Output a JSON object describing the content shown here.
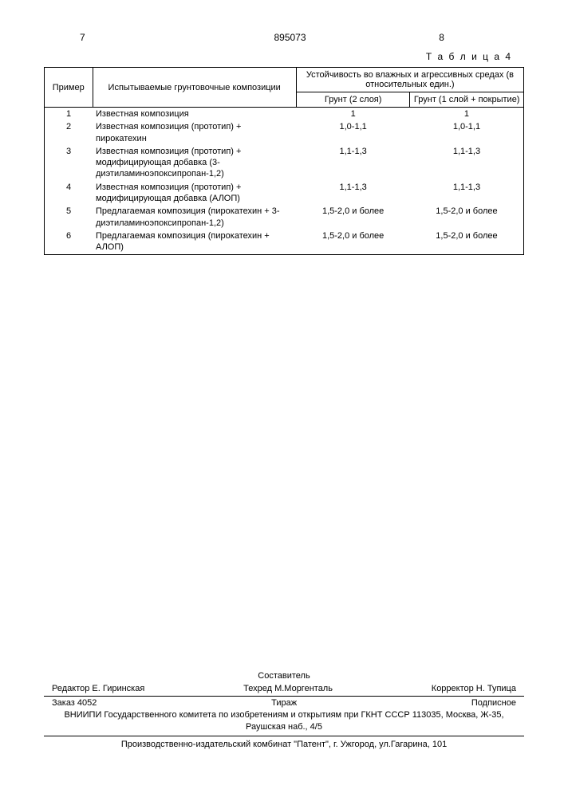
{
  "header": {
    "left_num": "7",
    "center_num": "895073",
    "right_num": "8"
  },
  "table": {
    "caption": "Т а б л и ц а  4",
    "head": {
      "col1": "Пример",
      "col2": "Испытываемые грунтовочные композиции",
      "col34_top": "Устойчивость во влажных и агрессивных средах (в относительных един.)",
      "col3": "Грунт (2 слоя)",
      "col4": "Грунт (1 слой + покрытие)"
    },
    "rows": [
      {
        "n": "1",
        "comp": "Известная композиция",
        "r1": "1",
        "r2": "1"
      },
      {
        "n": "2",
        "comp": "Известная композиция (прототип) + пирокатехин",
        "r1": "1,0-1,1",
        "r2": "1,0-1,1"
      },
      {
        "n": "3",
        "comp": "Известная композиция (прототип) + модифицирующая добавка (3-диэтиламиноэпоксипропан-1,2)",
        "r1": "1,1-1,3",
        "r2": "1,1-1,3"
      },
      {
        "n": "4",
        "comp": "Известная композиция (прототип) + модифицирующая добавка (АЛОП)",
        "r1": "1,1-1,3",
        "r2": "1,1-1,3"
      },
      {
        "n": "5",
        "comp": "Предлагаемая композиция (пирокатехин + 3-диэтиламиноэпоксипропан-1,2)",
        "r1": "1,5-2,0 и более",
        "r2": "1,5-2,0 и более"
      },
      {
        "n": "6",
        "comp": "Предлагаемая композиция (пирокатехин + АЛОП)",
        "r1": "1,5-2,0 и более",
        "r2": "1,5-2,0 и более"
      }
    ]
  },
  "footer": {
    "compiler": "Составитель",
    "editor": "Редактор Е. Гиринская",
    "techred": "Техред М.Моргенталь",
    "corrector": "Корректор Н. Тупица",
    "order": "Заказ 4052",
    "circulation": "Тираж",
    "signed": "Подписное",
    "org": "ВНИИПИ Государственного комитета по изобретениям и открытиям при ГКНТ СССР 113035, Москва, Ж-35, Раушская наб., 4/5",
    "printer": "Производственно-издательский комбинат \"Патент\", г. Ужгород, ул.Гагарина, 101"
  }
}
